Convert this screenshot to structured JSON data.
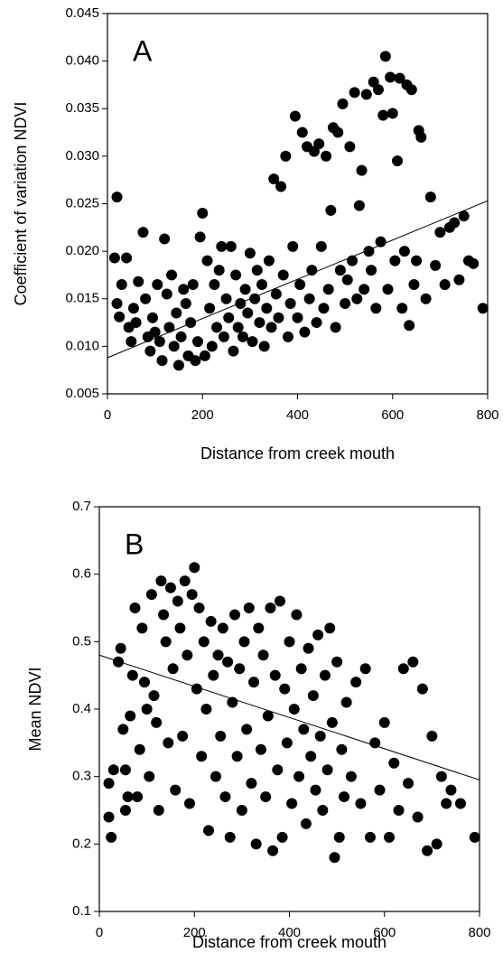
{
  "chart_data": [
    {
      "type": "scatter",
      "annotation": "A",
      "x_label": "Distance from creek mouth",
      "y_label": "Coefficient of variation NDVI",
      "color": "#000000",
      "xlim": [
        0,
        800
      ],
      "ylim": [
        0.005,
        0.045
      ],
      "xticks": [
        0,
        200,
        400,
        600,
        800
      ],
      "yticks": [
        0.005,
        {
          "value": 0.01,
          "label": "0.010"
        },
        0.015,
        {
          "value": 0.02,
          "label": "0.020"
        },
        0.025,
        {
          "value": 0.03,
          "label": "0.030"
        },
        0.035,
        {
          "value": 0.04,
          "label": "0.040"
        },
        0.045
      ],
      "trendline": {
        "x": [
          0,
          800
        ],
        "y": [
          0.0088,
          0.0253
        ]
      },
      "x": [
        20,
        15,
        20,
        25,
        30,
        40,
        45,
        50,
        55,
        60,
        65,
        75,
        80,
        85,
        90,
        95,
        100,
        105,
        110,
        115,
        120,
        125,
        130,
        135,
        140,
        145,
        150,
        155,
        160,
        165,
        170,
        175,
        180,
        185,
        190,
        195,
        200,
        205,
        210,
        215,
        220,
        225,
        230,
        235,
        240,
        245,
        250,
        255,
        260,
        265,
        270,
        275,
        280,
        285,
        290,
        295,
        300,
        305,
        310,
        315,
        320,
        325,
        330,
        335,
        340,
        345,
        350,
        355,
        360,
        365,
        370,
        375,
        380,
        385,
        390,
        395,
        400,
        405,
        410,
        415,
        420,
        425,
        430,
        435,
        440,
        445,
        450,
        455,
        460,
        465,
        470,
        475,
        480,
        485,
        490,
        495,
        500,
        505,
        510,
        515,
        520,
        525,
        530,
        535,
        540,
        545,
        550,
        555,
        560,
        565,
        570,
        575,
        580,
        585,
        590,
        595,
        600,
        605,
        610,
        615,
        620,
        625,
        630,
        635,
        640,
        645,
        650,
        655,
        660,
        670,
        680,
        690,
        700,
        710,
        720,
        730,
        740,
        750,
        760,
        770,
        790
      ],
      "y": [
        0.0257,
        0.0193,
        0.0145,
        0.0131,
        0.0165,
        0.0193,
        0.012,
        0.0105,
        0.014,
        0.0125,
        0.0168,
        0.022,
        0.015,
        0.011,
        0.0095,
        0.013,
        0.0115,
        0.0165,
        0.0105,
        0.0085,
        0.0213,
        0.0155,
        0.012,
        0.0175,
        0.01,
        0.0135,
        0.008,
        0.011,
        0.016,
        0.0145,
        0.009,
        0.0125,
        0.0165,
        0.0085,
        0.0105,
        0.0215,
        0.024,
        0.009,
        0.019,
        0.014,
        0.01,
        0.0165,
        0.012,
        0.018,
        0.0205,
        0.011,
        0.015,
        0.013,
        0.0205,
        0.0095,
        0.0175,
        0.012,
        0.0145,
        0.011,
        0.016,
        0.0135,
        0.0198,
        0.0105,
        0.015,
        0.018,
        0.0125,
        0.0165,
        0.01,
        0.014,
        0.019,
        0.012,
        0.0276,
        0.0155,
        0.013,
        0.0268,
        0.0175,
        0.03,
        0.011,
        0.0145,
        0.0205,
        0.0342,
        0.013,
        0.0165,
        0.0325,
        0.0115,
        0.031,
        0.015,
        0.018,
        0.0305,
        0.0125,
        0.0313,
        0.0205,
        0.014,
        0.03,
        0.016,
        0.0243,
        0.033,
        0.012,
        0.0325,
        0.018,
        0.0355,
        0.0145,
        0.017,
        0.031,
        0.019,
        0.0367,
        0.015,
        0.0248,
        0.0285,
        0.016,
        0.0365,
        0.02,
        0.018,
        0.0378,
        0.014,
        0.037,
        0.021,
        0.0343,
        0.0405,
        0.016,
        0.0383,
        0.0345,
        0.019,
        0.0295,
        0.0382,
        0.014,
        0.02,
        0.0375,
        0.0122,
        0.037,
        0.0165,
        0.019,
        0.0327,
        0.032,
        0.015,
        0.0257,
        0.0185,
        0.022,
        0.0165,
        0.0225,
        0.023,
        0.017,
        0.0237,
        0.019,
        0.0187,
        0.014
      ]
    },
    {
      "type": "scatter",
      "annotation": "B",
      "x_label": "Distance from creek mouth",
      "y_label": "Mean NDVI",
      "color": "#000000",
      "xlim": [
        0,
        800
      ],
      "ylim": [
        0.1,
        0.7
      ],
      "xticks": [
        0,
        200,
        400,
        600,
        800
      ],
      "yticks": [
        0.1,
        0.2,
        0.3,
        0.4,
        0.5,
        0.6,
        0.7
      ],
      "trendline": {
        "x": [
          0,
          800
        ],
        "y": [
          0.48,
          0.295
        ]
      },
      "x": [
        20,
        25,
        20,
        30,
        40,
        45,
        50,
        55,
        55,
        60,
        65,
        70,
        75,
        80,
        85,
        90,
        95,
        100,
        105,
        110,
        115,
        120,
        125,
        130,
        135,
        140,
        145,
        150,
        155,
        160,
        165,
        170,
        175,
        180,
        185,
        190,
        195,
        200,
        205,
        210,
        215,
        220,
        225,
        230,
        235,
        240,
        245,
        250,
        255,
        260,
        265,
        270,
        275,
        280,
        285,
        290,
        295,
        300,
        305,
        310,
        315,
        320,
        325,
        330,
        335,
        340,
        345,
        350,
        355,
        360,
        365,
        370,
        375,
        380,
        385,
        390,
        395,
        400,
        405,
        410,
        415,
        420,
        425,
        430,
        435,
        440,
        445,
        450,
        455,
        460,
        465,
        470,
        475,
        480,
        485,
        490,
        495,
        500,
        505,
        510,
        515,
        520,
        530,
        540,
        550,
        560,
        570,
        580,
        590,
        600,
        610,
        620,
        630,
        640,
        650,
        660,
        670,
        680,
        690,
        700,
        710,
        720,
        730,
        740,
        760,
        790
      ],
      "y": [
        0.24,
        0.21,
        0.29,
        0.31,
        0.47,
        0.49,
        0.37,
        0.25,
        0.31,
        0.27,
        0.39,
        0.45,
        0.55,
        0.27,
        0.34,
        0.52,
        0.44,
        0.4,
        0.3,
        0.57,
        0.42,
        0.38,
        0.25,
        0.59,
        0.54,
        0.5,
        0.35,
        0.58,
        0.46,
        0.28,
        0.56,
        0.52,
        0.36,
        0.59,
        0.48,
        0.26,
        0.57,
        0.61,
        0.43,
        0.55,
        0.33,
        0.5,
        0.4,
        0.22,
        0.53,
        0.45,
        0.3,
        0.48,
        0.36,
        0.52,
        0.27,
        0.47,
        0.21,
        0.41,
        0.54,
        0.33,
        0.46,
        0.25,
        0.5,
        0.37,
        0.55,
        0.29,
        0.44,
        0.2,
        0.52,
        0.34,
        0.48,
        0.27,
        0.39,
        0.55,
        0.19,
        0.45,
        0.31,
        0.56,
        0.21,
        0.43,
        0.35,
        0.5,
        0.26,
        0.4,
        0.54,
        0.3,
        0.46,
        0.37,
        0.23,
        0.49,
        0.33,
        0.42,
        0.28,
        0.51,
        0.36,
        0.25,
        0.45,
        0.31,
        0.52,
        0.38,
        0.18,
        0.47,
        0.21,
        0.34,
        0.27,
        0.41,
        0.3,
        0.44,
        0.26,
        0.46,
        0.21,
        0.35,
        0.28,
        0.38,
        0.21,
        0.32,
        0.25,
        0.46,
        0.29,
        0.47,
        0.24,
        0.43,
        0.19,
        0.36,
        0.2,
        0.3,
        0.26,
        0.28,
        0.26,
        0.21
      ]
    }
  ]
}
